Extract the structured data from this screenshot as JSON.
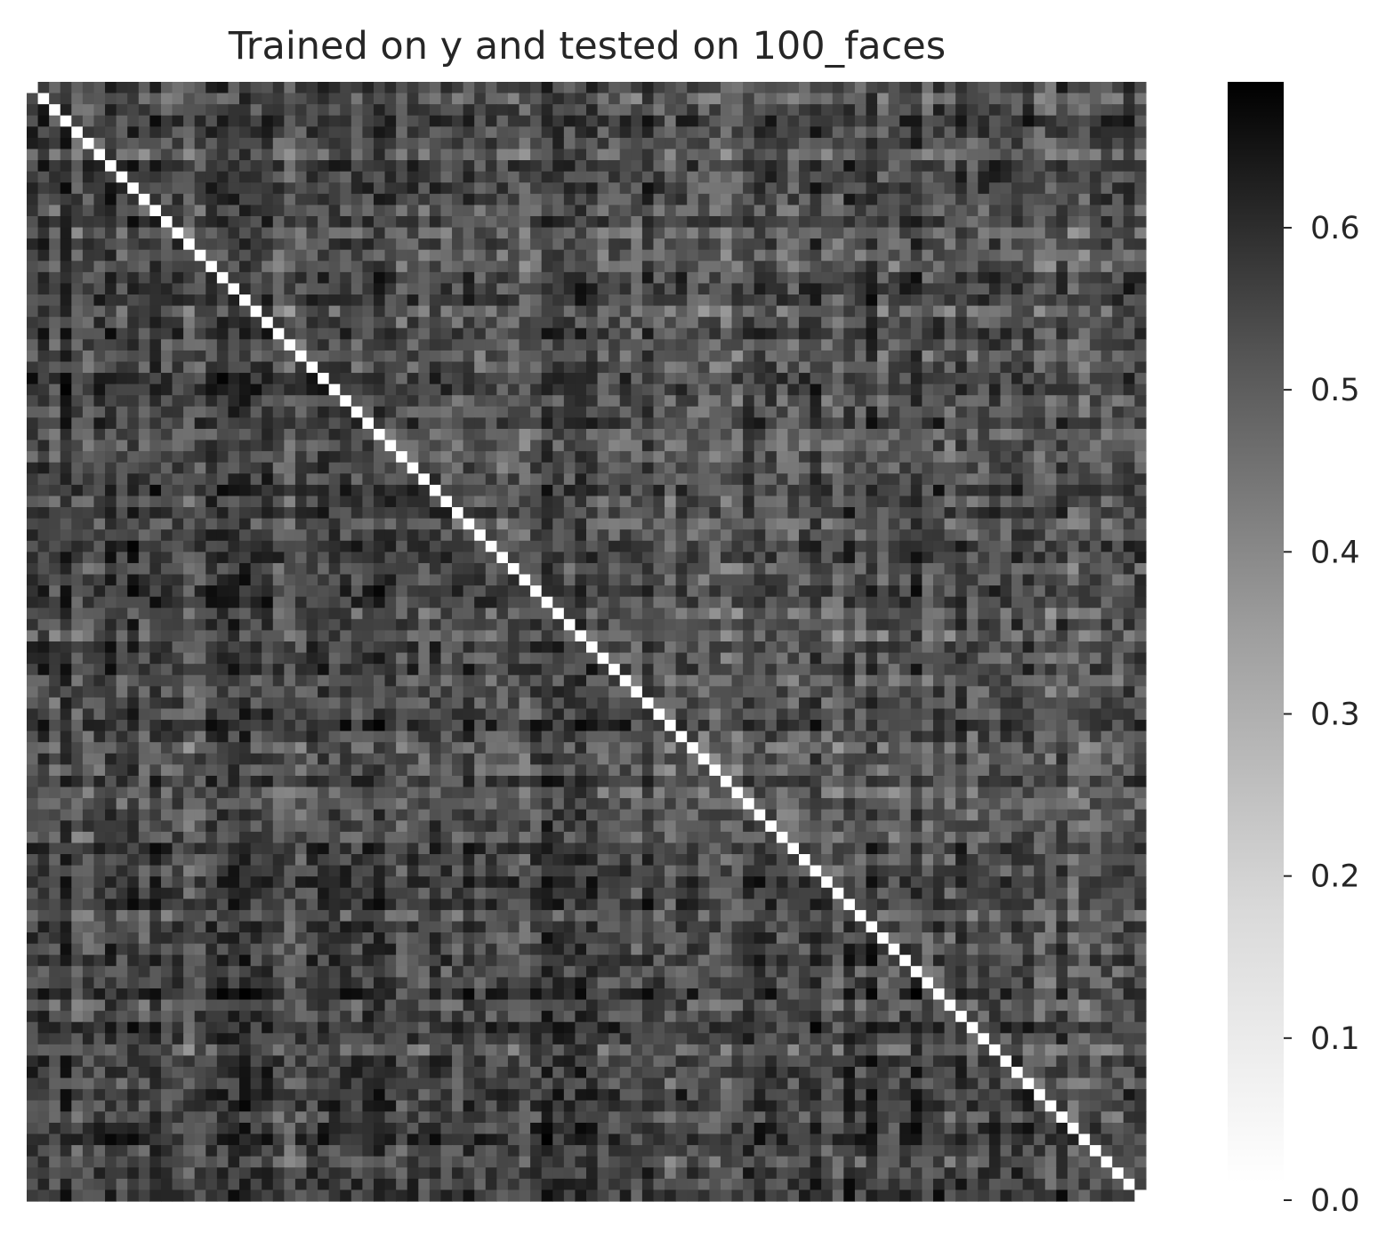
{
  "chart_data": {
    "type": "heatmap",
    "title": "Trained on y and tested on 100_faces",
    "xlabel": "",
    "ylabel": "",
    "rows": 100,
    "cols": 100,
    "x_tick_labels_shown": false,
    "y_tick_labels_shown": false,
    "diagonal_value": 0.0,
    "value_range_estimate": [
      0.1,
      0.69
    ],
    "colormap": "Greys",
    "colors": {
      "low": "#ffffff",
      "high": "#000000"
    },
    "colorbar": {
      "position": "right",
      "range": [
        0.0,
        0.69
      ],
      "ticks": [
        0.0,
        0.1,
        0.2,
        0.3,
        0.4,
        0.5,
        0.6
      ],
      "tick_labels": [
        "0.0",
        "0.1",
        "0.2",
        "0.3",
        "0.4",
        "0.5",
        "0.6"
      ]
    }
  }
}
